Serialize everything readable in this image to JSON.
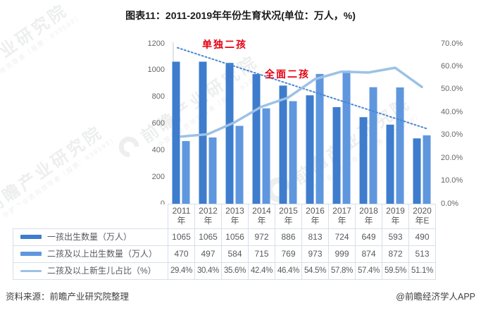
{
  "title": "图表11：2011-2019年年份生育状况(单位：万人，%)",
  "chart_data": {
    "type": "bar+line",
    "categories": [
      "2011年",
      "2012年",
      "2013年",
      "2014年",
      "2015年",
      "2016年",
      "2017年",
      "2018年",
      "2019年",
      "2020年E"
    ],
    "series": [
      {
        "name": "一孩出生数量（万人）",
        "type": "bar",
        "axis": "left",
        "color": "#3e7ccd",
        "values": [
          1065,
          1065,
          1056,
          972,
          886,
          813,
          724,
          649,
          593,
          490
        ]
      },
      {
        "name": "二孩及以上出生数量（万人）",
        "type": "bar",
        "axis": "left",
        "color": "#5f97de",
        "values": [
          470,
          497,
          584,
          715,
          769,
          973,
          999,
          874,
          872,
          513
        ]
      },
      {
        "name": "二孩及以上新生儿占比（%）",
        "type": "line",
        "axis": "right",
        "color": "#9cc2e5",
        "values": [
          29.4,
          30.4,
          35.6,
          42.4,
          46.4,
          54.5,
          57.8,
          57.4,
          59.5,
          51.1
        ]
      }
    ],
    "trendline": {
      "style": "dotted",
      "color": "#4a86d2",
      "start_value": 1170,
      "end_value": 560
    },
    "left_axis": {
      "min": 0,
      "max": 1200,
      "step": 200,
      "ticks": [
        "0",
        "200",
        "400",
        "600",
        "800",
        "1000",
        "1200"
      ]
    },
    "right_axis": {
      "min": 0,
      "max": 70,
      "step": 10,
      "ticks": [
        "0.0%",
        "10.0%",
        "20.0%",
        "30.0%",
        "40.0%",
        "50.0%",
        "60.0%",
        "70.0%"
      ]
    },
    "annotations": [
      {
        "text": "单独二孩",
        "color": "#e60012"
      },
      {
        "text": "全面二孩",
        "color": "#e60012"
      }
    ],
    "grid": false,
    "legend_position": "table-left"
  },
  "table": {
    "header": [
      [
        "2011",
        "年"
      ],
      [
        "2012",
        "年"
      ],
      [
        "2013",
        "年"
      ],
      [
        "2014",
        "年"
      ],
      [
        "2015",
        "年"
      ],
      [
        "2016",
        "年"
      ],
      [
        "2017",
        "年"
      ],
      [
        "2018",
        "年"
      ],
      [
        "2019",
        "年"
      ],
      [
        "2020",
        "年E"
      ]
    ],
    "rows": [
      {
        "label": "一孩出生数量（万人）",
        "values": [
          "1065",
          "1065",
          "1056",
          "972",
          "886",
          "813",
          "724",
          "649",
          "593",
          "490"
        ]
      },
      {
        "label": "二孩及以上出生数量（万人）",
        "values": [
          "470",
          "497",
          "584",
          "715",
          "769",
          "973",
          "999",
          "874",
          "872",
          "513"
        ]
      },
      {
        "label": "二孩及以上新生儿占比（%）",
        "values": [
          "29.4%",
          "30.4%",
          "35.6%",
          "42.4%",
          "46.4%",
          "54.5%",
          "57.8%",
          "57.4%",
          "59.5%",
          "51.1%"
        ]
      }
    ]
  },
  "watermark": {
    "main": "前瞻产业研究院",
    "sub": "中国产业咨询领导者（股票：839599）"
  },
  "footer": {
    "source": "资料来源：前瞻产业研究院整理",
    "brand": "@前瞻经济学人APP"
  }
}
